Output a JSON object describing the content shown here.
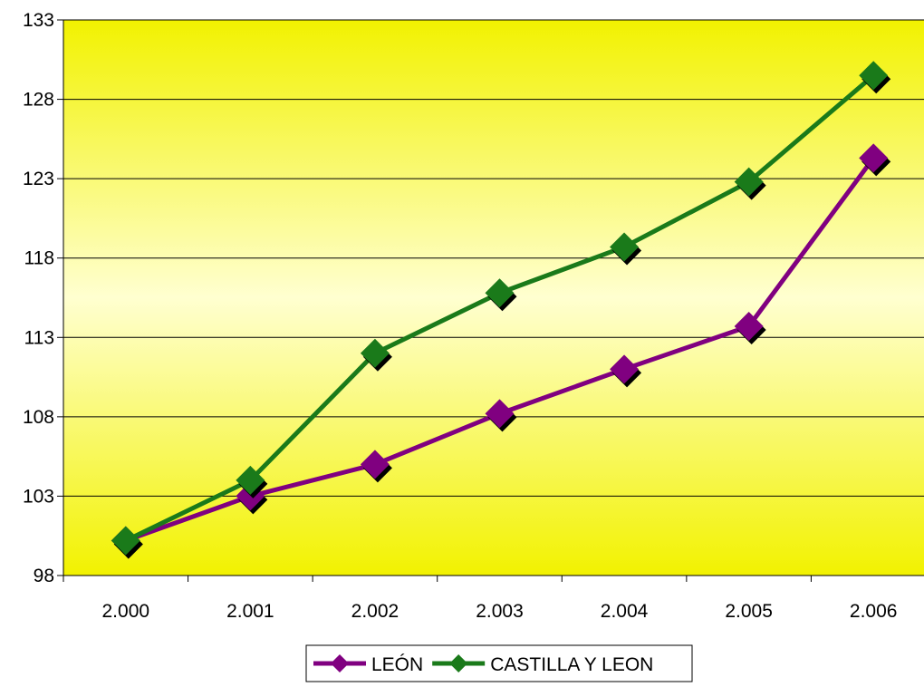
{
  "chart_data": {
    "type": "line",
    "categories": [
      "2.000",
      "2.001",
      "2.002",
      "2.003",
      "2.004",
      "2.005",
      "2.006"
    ],
    "series": [
      {
        "name": "LEÓN",
        "color": "#800080",
        "values": [
          100.2,
          103.0,
          105.0,
          108.2,
          111.0,
          113.7,
          124.3
        ]
      },
      {
        "name": "CASTILLA Y LEON",
        "color": "#1a7a1a",
        "values": [
          100.2,
          104.0,
          112.0,
          115.8,
          118.7,
          122.8,
          129.5
        ]
      }
    ],
    "yticks": [
      "98",
      "103",
      "108",
      "113",
      "118",
      "123",
      "128",
      "133"
    ],
    "ylim": [
      98,
      133
    ],
    "grid": true,
    "legend": "bottom",
    "background_gradient": [
      "#f2f200",
      "#ffffd0",
      "#f2f200"
    ]
  }
}
